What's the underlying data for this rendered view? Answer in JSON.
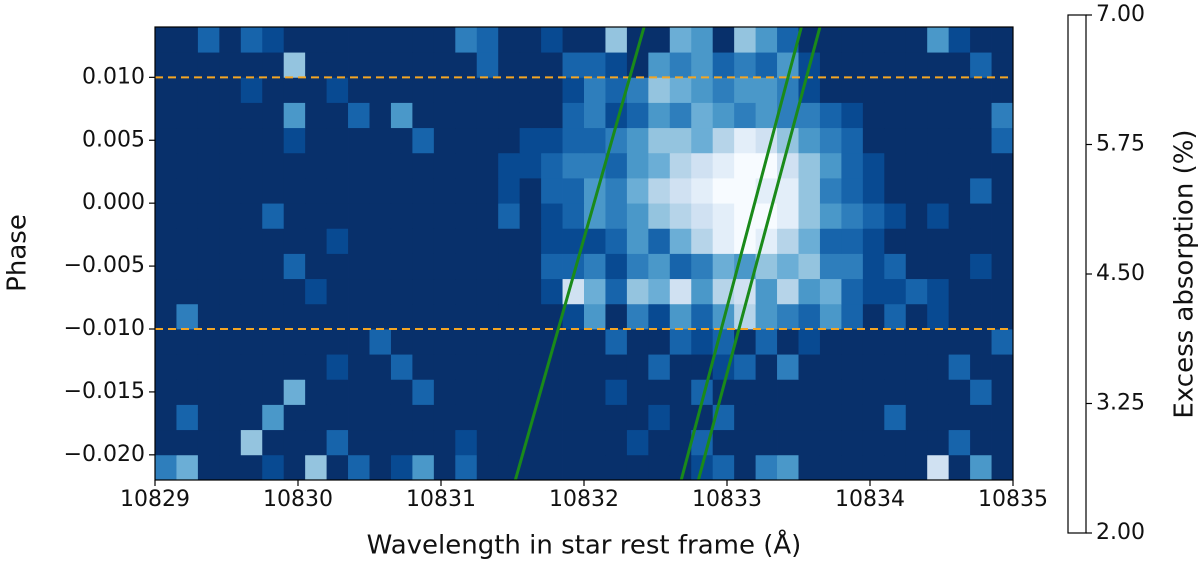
{
  "chart_data": {
    "type": "heatmap",
    "xlabel": "Wavelength in star rest frame (Å)",
    "ylabel": "Phase",
    "colorbar_label": "Excess absorption (%)",
    "xlim": [
      10829,
      10835
    ],
    "ylim": [
      -0.022,
      0.014
    ],
    "xticks": [
      10829,
      10830,
      10831,
      10832,
      10833,
      10834,
      10835
    ],
    "yticks": [
      {
        "value": -0.02,
        "label": "−0.020"
      },
      {
        "value": -0.015,
        "label": "−0.015"
      },
      {
        "value": -0.01,
        "label": "−0.010"
      },
      {
        "value": -0.005,
        "label": "−0.005"
      },
      {
        "value": 0,
        "label": "0.000"
      },
      {
        "value": 0.005,
        "label": "0.005"
      },
      {
        "value": 0.01,
        "label": "0.010"
      }
    ],
    "zlim": [
      2,
      7
    ],
    "zticks": [
      {
        "value": 2,
        "label": "2.00"
      },
      {
        "value": 3.25,
        "label": "3.25"
      },
      {
        "value": 4.5,
        "label": "4.50"
      },
      {
        "value": 5.75,
        "label": "5.75"
      },
      {
        "value": 7,
        "label": "7.00"
      }
    ],
    "colormap": [
      "#08306b",
      "#08519c",
      "#2171b5",
      "#4292c6",
      "#6baed6",
      "#9ecae1",
      "#c6dbef",
      "#deebf7",
      "#f7fbff"
    ],
    "x": [
      10829.075,
      10829.225,
      10829.375,
      10829.525,
      10829.675,
      10829.825,
      10829.975,
      10830.125,
      10830.275,
      10830.425,
      10830.575,
      10830.725,
      10830.875,
      10831.025,
      10831.175,
      10831.325,
      10831.475,
      10831.625,
      10831.775,
      10831.925,
      10832.075,
      10832.225,
      10832.375,
      10832.525,
      10832.675,
      10832.825,
      10832.975,
      10833.125,
      10833.275,
      10833.425,
      10833.575,
      10833.725,
      10833.875,
      10834.025,
      10834.175,
      10834.325,
      10834.475,
      10834.625,
      10834.775,
      10834.925
    ],
    "y": [
      -0.021,
      -0.019,
      -0.017,
      -0.015,
      -0.013,
      -0.011,
      -0.009,
      -0.007,
      -0.005,
      -0.003,
      -0.001,
      0.001,
      0.003,
      0.005,
      0.007,
      0.009,
      0.011,
      0.013
    ],
    "z": [
      [
        3.5,
        4.5,
        2,
        2,
        2,
        2.5,
        2,
        5,
        2,
        3,
        2,
        2.5,
        4,
        2,
        3,
        2,
        2,
        2,
        2,
        2,
        2,
        2,
        2,
        2,
        2,
        2.5,
        3,
        2,
        3.5,
        4,
        2,
        2,
        2,
        2,
        2,
        2,
        6,
        2,
        4,
        2
      ],
      [
        2,
        2,
        2,
        2,
        5,
        2,
        2,
        2,
        3,
        2,
        2,
        2,
        2,
        2,
        2.5,
        2,
        2,
        2,
        2,
        2,
        2,
        2,
        2.5,
        2,
        2,
        3,
        2,
        2,
        2,
        2,
        2,
        2,
        2,
        2,
        2,
        2,
        2,
        3,
        2,
        2
      ],
      [
        2,
        3,
        2,
        2,
        2,
        4,
        2,
        2,
        2,
        2,
        2,
        2,
        2,
        2,
        2,
        2,
        2,
        2,
        2,
        2,
        2,
        2,
        2,
        2.5,
        2,
        2,
        3,
        2,
        2,
        2,
        2,
        2,
        2,
        2,
        3,
        2,
        2,
        2,
        2,
        2
      ],
      [
        2,
        2,
        2,
        2,
        2,
        2,
        4.5,
        2,
        2,
        2,
        2,
        2,
        3,
        2,
        2,
        2,
        2,
        2,
        2,
        2,
        2,
        2.5,
        2,
        2,
        2,
        3,
        2,
        2,
        2,
        2,
        2,
        2,
        2,
        2,
        2,
        2,
        2,
        2,
        3,
        2
      ],
      [
        2,
        2,
        2,
        2,
        2,
        2,
        2,
        2,
        2.5,
        2,
        2,
        3,
        2,
        2,
        2,
        2,
        2,
        2,
        2,
        2,
        2,
        2,
        2,
        3,
        2,
        2,
        2.5,
        3,
        2,
        3.5,
        2,
        2,
        2,
        2,
        2,
        2,
        2,
        3,
        2,
        2
      ],
      [
        2,
        2,
        2,
        2,
        2,
        2,
        2,
        2,
        2,
        2,
        3,
        2,
        2,
        2,
        2,
        2,
        2,
        2,
        2,
        2,
        2,
        3,
        2,
        2,
        3,
        2.5,
        3,
        2,
        3,
        2,
        2.5,
        2,
        2,
        2,
        2,
        2,
        2,
        2,
        2,
        3
      ],
      [
        2,
        3.5,
        2,
        2,
        2,
        2,
        2,
        2,
        2,
        2,
        2,
        2,
        2,
        2,
        2,
        2,
        2,
        2,
        2,
        2.5,
        4,
        2,
        3.5,
        2.5,
        4,
        3,
        4,
        5.5,
        4,
        3.5,
        3,
        4,
        3,
        2,
        3,
        2,
        2.5,
        2,
        2,
        2
      ],
      [
        2,
        2,
        2,
        2,
        2,
        2,
        2,
        2.5,
        2,
        2,
        2,
        2,
        2,
        2,
        2,
        2,
        2,
        2,
        2.5,
        6,
        4.5,
        3,
        5,
        4.5,
        6,
        4,
        5.5,
        6,
        4,
        5.5,
        4,
        4.5,
        3,
        2.5,
        2.5,
        3,
        2.5,
        2,
        2,
        2
      ],
      [
        2,
        2,
        2,
        2,
        2,
        2,
        3,
        2,
        2,
        2,
        2,
        2,
        2,
        2,
        2,
        2,
        2,
        2,
        3,
        3,
        3.5,
        2.5,
        3.5,
        4,
        3,
        3.5,
        4.5,
        4,
        5,
        4.5,
        5,
        3.5,
        3.5,
        2.5,
        3,
        2,
        2,
        2,
        2.5,
        2
      ],
      [
        2,
        2,
        2,
        2,
        2,
        2,
        2,
        2,
        2.5,
        2,
        2,
        2,
        2,
        2,
        2,
        2,
        2,
        2,
        2.5,
        2.5,
        2.5,
        3,
        4,
        3,
        4.5,
        5.5,
        6.5,
        7,
        6.5,
        5.5,
        4.5,
        3,
        3,
        2.5,
        2,
        2,
        2,
        2,
        2,
        2
      ],
      [
        2,
        2,
        2,
        2,
        2,
        3,
        2,
        2,
        2,
        2,
        2,
        2,
        2,
        2,
        2,
        2,
        3,
        2,
        2.5,
        3,
        4,
        3.5,
        4,
        5,
        5.5,
        6,
        6.5,
        7,
        7,
        6.5,
        5,
        4,
        3.5,
        3,
        2.5,
        2,
        2.5,
        2,
        2,
        2
      ],
      [
        2,
        2,
        2,
        2,
        2,
        2,
        2,
        2,
        2,
        2,
        2,
        2,
        2,
        2,
        2,
        2,
        2.5,
        2,
        3,
        3,
        4,
        3.5,
        4.5,
        5.5,
        6,
        6.5,
        7,
        7,
        6.5,
        6.5,
        5,
        3.5,
        3,
        2.5,
        2,
        2,
        2,
        2,
        3,
        2
      ],
      [
        2,
        2,
        2,
        2,
        2,
        2,
        2,
        2,
        2,
        2,
        2,
        2,
        2,
        2,
        2,
        2,
        2.5,
        2.5,
        3,
        3.5,
        3.5,
        3,
        4,
        4.5,
        5.5,
        6,
        6.5,
        7,
        7,
        6,
        5,
        4,
        3,
        2.5,
        2,
        2,
        2,
        2,
        2,
        2
      ],
      [
        2,
        2,
        2,
        2,
        2,
        2,
        2.5,
        2,
        2,
        2,
        2,
        2,
        3,
        2,
        2,
        2,
        2,
        2.5,
        2.5,
        3,
        3,
        3.5,
        4,
        5,
        5,
        4.5,
        5.5,
        6.5,
        6,
        5,
        4,
        3.5,
        3,
        2,
        2,
        2,
        2,
        2,
        2,
        3
      ],
      [
        2,
        2,
        2,
        2,
        2,
        2,
        4,
        2,
        2,
        3,
        2,
        4,
        2,
        2,
        2,
        2,
        2,
        2,
        2,
        3,
        3.5,
        2.5,
        3,
        4,
        3.5,
        4.5,
        4,
        3.5,
        4,
        3.5,
        3.5,
        3,
        2.5,
        2,
        2,
        2,
        2,
        2,
        2,
        3.5
      ],
      [
        2,
        2,
        2,
        2,
        2.5,
        2,
        2,
        2,
        2.5,
        2,
        2,
        2,
        2,
        2,
        2,
        2,
        2,
        2,
        2,
        2.5,
        3.5,
        3,
        3.5,
        5,
        4.5,
        4,
        3.5,
        4,
        4,
        3.5,
        2.5,
        2,
        2,
        2,
        2,
        2,
        2,
        2,
        2,
        2
      ],
      [
        2,
        2,
        2,
        2,
        2,
        2,
        5,
        2,
        2,
        2,
        2,
        2,
        2,
        2,
        2,
        3,
        2,
        2,
        2,
        3,
        3,
        2.5,
        2,
        4,
        3.5,
        4,
        3,
        3.5,
        3,
        4,
        2.5,
        2,
        2,
        2,
        2,
        2,
        2,
        2,
        3,
        2
      ],
      [
        2,
        2,
        3,
        2,
        3,
        2.5,
        2,
        2,
        2,
        2,
        2,
        2,
        2,
        2,
        3.5,
        3,
        2,
        2,
        2.5,
        2,
        2,
        5,
        2,
        2,
        4.5,
        4,
        2,
        5,
        4,
        3,
        2,
        2,
        2,
        2,
        2,
        2,
        4,
        2.5,
        2,
        2
      ]
    ],
    "lines": [
      {
        "color": "#1a8a1a",
        "x": [
          10831.52,
          10832.42
        ],
        "y": [
          -0.022,
          0.014
        ]
      },
      {
        "color": "#1a8a1a",
        "x": [
          10832.68,
          10833.52
        ],
        "y": [
          -0.022,
          0.014
        ]
      },
      {
        "color": "#1a8a1a",
        "x": [
          10832.8,
          10833.65
        ],
        "y": [
          -0.022,
          0.014
        ]
      }
    ],
    "hlines": [
      {
        "y": 0.01,
        "color": "#f5a623"
      },
      {
        "y": -0.01,
        "color": "#f5a623"
      }
    ]
  }
}
